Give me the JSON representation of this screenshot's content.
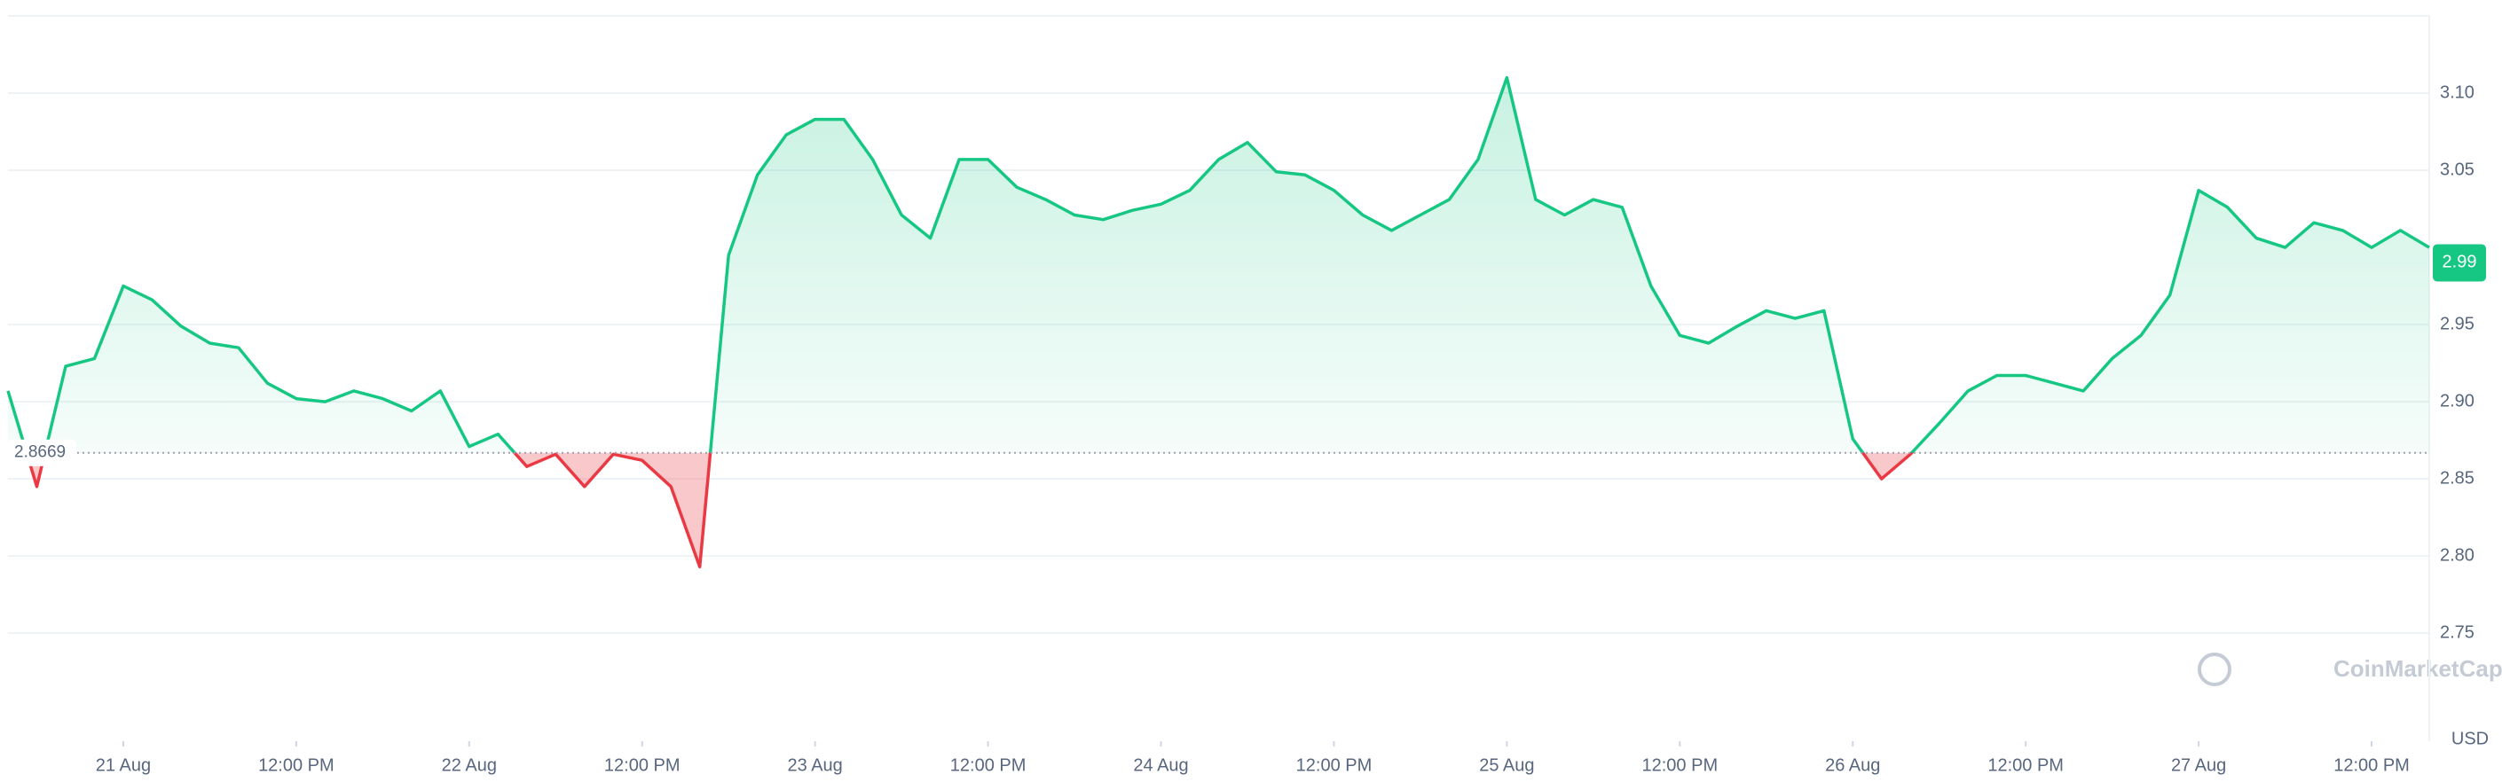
{
  "chart_data": {
    "type": "line",
    "baseline": 2.8669,
    "current_price": 2.99,
    "unit": "USD",
    "watermark": "CoinMarketCap",
    "up_color": "#16c784",
    "down_color": "#ea3943",
    "values": [
      2.907,
      2.845,
      2.923,
      2.928,
      2.975,
      2.966,
      2.949,
      2.938,
      2.935,
      2.912,
      2.902,
      2.9,
      2.907,
      2.902,
      2.894,
      2.907,
      2.871,
      2.879,
      2.858,
      2.866,
      2.845,
      2.866,
      2.862,
      2.845,
      2.793,
      2.995,
      3.047,
      3.073,
      3.083,
      3.083,
      3.057,
      3.021,
      3.006,
      3.057,
      3.057,
      3.039,
      3.031,
      3.021,
      3.018,
      3.024,
      3.028,
      3.037,
      3.057,
      3.068,
      3.049,
      3.047,
      3.037,
      3.021,
      3.011,
      3.021,
      3.031,
      3.057,
      3.11,
      3.031,
      3.021,
      3.031,
      3.026,
      2.975,
      2.943,
      2.938,
      2.949,
      2.959,
      2.954,
      2.959,
      2.876,
      2.85,
      2.866,
      2.886,
      2.907,
      2.917,
      2.917,
      2.912,
      2.907,
      2.928,
      2.943,
      2.969,
      3.037,
      3.026,
      3.006,
      3.0,
      3.016,
      3.011,
      3.0,
      3.011,
      3.0
    ],
    "xlim": [
      0,
      84
    ],
    "xticks": [
      {
        "value": 4,
        "label": "21 Aug"
      },
      {
        "value": 10,
        "label": "12:00 PM"
      },
      {
        "value": 16,
        "label": "22 Aug"
      },
      {
        "value": 22,
        "label": "12:00 PM"
      },
      {
        "value": 28,
        "label": "23 Aug"
      },
      {
        "value": 34,
        "label": "12:00 PM"
      },
      {
        "value": 40,
        "label": "24 Aug"
      },
      {
        "value": 46,
        "label": "12:00 PM"
      },
      {
        "value": 52,
        "label": "25 Aug"
      },
      {
        "value": 58,
        "label": "12:00 PM"
      },
      {
        "value": 64,
        "label": "26 Aug"
      },
      {
        "value": 70,
        "label": "12:00 PM"
      },
      {
        "value": 76,
        "label": "27 Aug"
      },
      {
        "value": 82,
        "label": "12:00 PM"
      }
    ],
    "ylim": [
      2.68,
      3.15
    ],
    "yticks": [
      2.75,
      {
        "value": 2.8,
        "label": "2.80"
      },
      2.85,
      {
        "value": 2.9,
        "label": "2.90"
      },
      2.95,
      3.05,
      {
        "value": 3.1,
        "label": "3.10"
      }
    ],
    "grid": true
  }
}
